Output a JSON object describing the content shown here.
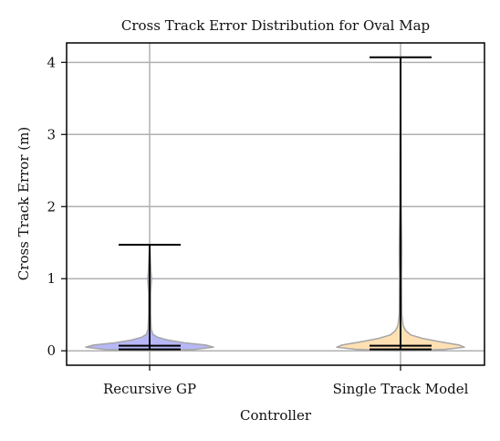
{
  "chart_data": {
    "type": "violin",
    "title": "Cross Track Error Distribution for Oval Map",
    "xlabel": "Controller",
    "ylabel": "Cross Track Error (m)",
    "ylim": [
      -0.2,
      4.27
    ],
    "yticks": [
      0,
      1,
      2,
      3,
      4
    ],
    "grid": true,
    "categories": [
      "Recursive GP",
      "Single Track Model"
    ],
    "series": [
      {
        "category": "Recursive GP",
        "color": "#9f9ff5",
        "min": 0.02,
        "median": 0.07,
        "max": 1.47,
        "density": [
          [
            0.0,
            0.0
          ],
          [
            0.02,
            0.72
          ],
          [
            0.05,
            1.0
          ],
          [
            0.08,
            0.88
          ],
          [
            0.11,
            0.55
          ],
          [
            0.15,
            0.28
          ],
          [
            0.19,
            0.12
          ],
          [
            0.23,
            0.05
          ],
          [
            0.3,
            0.025
          ],
          [
            0.5,
            0.015
          ],
          [
            0.8,
            0.015
          ],
          [
            1.0,
            0.03
          ],
          [
            1.1,
            0.02
          ],
          [
            1.3,
            0.01
          ],
          [
            1.47,
            0.0
          ]
        ]
      },
      {
        "category": "Single Track Model",
        "color": "#ffd59a",
        "min": 0.02,
        "median": 0.07,
        "max": 4.07,
        "density": [
          [
            0.0,
            0.0
          ],
          [
            0.02,
            0.7
          ],
          [
            0.05,
            1.0
          ],
          [
            0.08,
            0.92
          ],
          [
            0.12,
            0.65
          ],
          [
            0.17,
            0.35
          ],
          [
            0.22,
            0.16
          ],
          [
            0.28,
            0.08
          ],
          [
            0.35,
            0.04
          ],
          [
            0.5,
            0.02
          ],
          [
            1.0,
            0.015
          ],
          [
            1.4,
            0.02
          ],
          [
            2.0,
            0.01
          ],
          [
            3.0,
            0.006
          ],
          [
            4.07,
            0.0
          ]
        ]
      }
    ]
  }
}
